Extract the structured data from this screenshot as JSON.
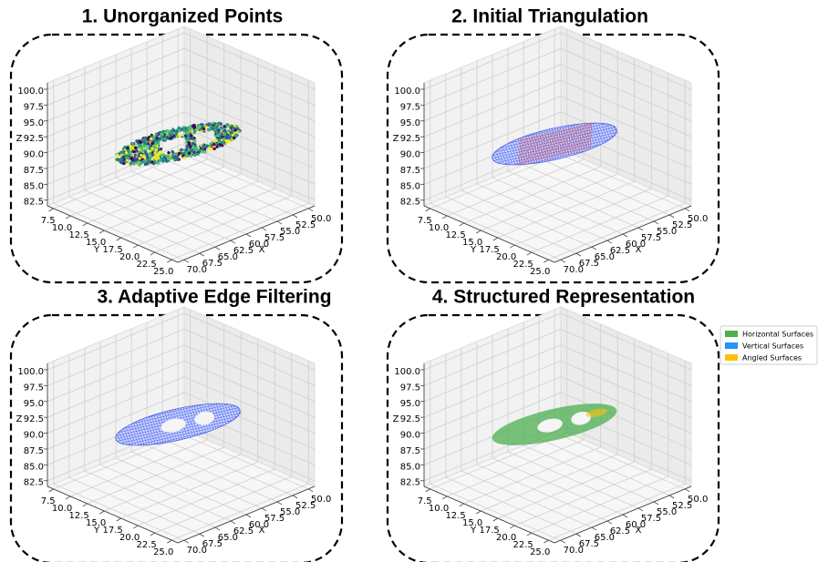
{
  "chart_data": [
    {
      "type": "scatter3d",
      "title": "1. Unorganized Points",
      "xlabel": "X",
      "ylabel": "Y",
      "zlabel": "Z",
      "xlim": [
        49,
        71
      ],
      "ylim": [
        6.6,
        25.9
      ],
      "zlim": [
        81.6,
        101
      ],
      "xticks": [
        {
          "value": 50,
          "label": "50.0"
        },
        52.5,
        {
          "value": 55,
          "label": "55.0"
        },
        57.5,
        {
          "value": 60,
          "label": "60.0"
        },
        62.5,
        {
          "value": 65,
          "label": "65.0"
        },
        67.5,
        {
          "value": 70,
          "label": "70.0"
        }
      ],
      "yticks": [
        7.5,
        {
          "value": 10,
          "label": "10.0"
        },
        12.5,
        {
          "value": 15,
          "label": "15.0"
        },
        17.5,
        {
          "value": 20,
          "label": "20.0"
        },
        22.5,
        {
          "value": 25,
          "label": "25.0"
        }
      ],
      "zticks": [
        82.5,
        {
          "value": 85,
          "label": "85.0"
        },
        87.5,
        {
          "value": 90,
          "label": "90.0"
        },
        92.5,
        {
          "value": 95,
          "label": "95.0"
        },
        97.5,
        {
          "value": 100,
          "label": "100.0"
        }
      ]
    },
    {
      "type": "triangulation3d",
      "title": "2. Initial Triangulation",
      "xlabel": "X",
      "ylabel": "Y",
      "zlabel": "Z",
      "xlim": [
        49,
        71
      ],
      "ylim": [
        6.6,
        25.9
      ],
      "zlim": [
        81.6,
        101
      ],
      "xticks": [
        {
          "value": 50,
          "label": "50.0"
        },
        52.5,
        {
          "value": 55,
          "label": "55.0"
        },
        57.5,
        {
          "value": 60,
          "label": "60.0"
        },
        62.5,
        {
          "value": 65,
          "label": "65.0"
        },
        67.5,
        {
          "value": 70,
          "label": "70.0"
        }
      ],
      "yticks": [
        7.5,
        {
          "value": 10,
          "label": "10.0"
        },
        12.5,
        {
          "value": 15,
          "label": "15.0"
        },
        17.5,
        {
          "value": 20,
          "label": "20.0"
        },
        22.5,
        {
          "value": 25,
          "label": "25.0"
        }
      ],
      "zticks": [
        82.5,
        {
          "value": 85,
          "label": "85.0"
        },
        87.5,
        {
          "value": 90,
          "label": "90.0"
        },
        92.5,
        {
          "value": 95,
          "label": "95.0"
        },
        97.5,
        {
          "value": 100,
          "label": "100.0"
        }
      ]
    },
    {
      "type": "filtered3d",
      "title": "3. Adaptive Edge Filtering",
      "xlabel": "X",
      "ylabel": "Y",
      "zlabel": "Z",
      "xlim": [
        49,
        71
      ],
      "ylim": [
        6.6,
        25.9
      ],
      "zlim": [
        81.6,
        101
      ],
      "xticks": [
        {
          "value": 50,
          "label": "50.0"
        },
        52.5,
        {
          "value": 55,
          "label": "55.0"
        },
        57.5,
        {
          "value": 60,
          "label": "60.0"
        },
        62.5,
        {
          "value": 65,
          "label": "65.0"
        },
        67.5,
        {
          "value": 70,
          "label": "70.0"
        }
      ],
      "yticks": [
        7.5,
        {
          "value": 10,
          "label": "10.0"
        },
        12.5,
        {
          "value": 15,
          "label": "15.0"
        },
        17.5,
        {
          "value": 20,
          "label": "20.0"
        },
        22.5,
        {
          "value": 25,
          "label": "25.0"
        }
      ],
      "zticks": [
        82.5,
        {
          "value": 85,
          "label": "85.0"
        },
        87.5,
        {
          "value": 90,
          "label": "90.0"
        },
        92.5,
        {
          "value": 95,
          "label": "95.0"
        },
        97.5,
        {
          "value": 100,
          "label": "100.0"
        }
      ]
    },
    {
      "type": "structured3d",
      "title": "4. Structured Representation",
      "xlabel": "X",
      "ylabel": "Y",
      "zlabel": "Z",
      "xlim": [
        49,
        71
      ],
      "ylim": [
        6.6,
        25.9
      ],
      "zlim": [
        81.6,
        101
      ],
      "xticks": [
        {
          "value": 50,
          "label": "50.0"
        },
        52.5,
        {
          "value": 55,
          "label": "55.0"
        },
        57.5,
        {
          "value": 60,
          "label": "60.0"
        },
        62.5,
        {
          "value": 65,
          "label": "65.0"
        },
        67.5,
        {
          "value": 70,
          "label": "70.0"
        }
      ],
      "yticks": [
        7.5,
        {
          "value": 10,
          "label": "10.0"
        },
        12.5,
        {
          "value": 15,
          "label": "15.0"
        },
        17.5,
        {
          "value": 20,
          "label": "20.0"
        },
        22.5,
        {
          "value": 25,
          "label": "25.0"
        }
      ],
      "zticks": [
        82.5,
        {
          "value": 85,
          "label": "85.0"
        },
        87.5,
        {
          "value": 90,
          "label": "90.0"
        },
        92.5,
        {
          "value": 95,
          "label": "95.0"
        },
        97.5,
        {
          "value": 100,
          "label": "100.0"
        }
      ],
      "series": [
        {
          "name": "Horizontal Surfaces",
          "color": "#4caf50"
        },
        {
          "name": "Vertical Surfaces",
          "color": "#2196f3"
        },
        {
          "name": "Angled Surfaces",
          "color": "#ffc107"
        }
      ]
    }
  ]
}
